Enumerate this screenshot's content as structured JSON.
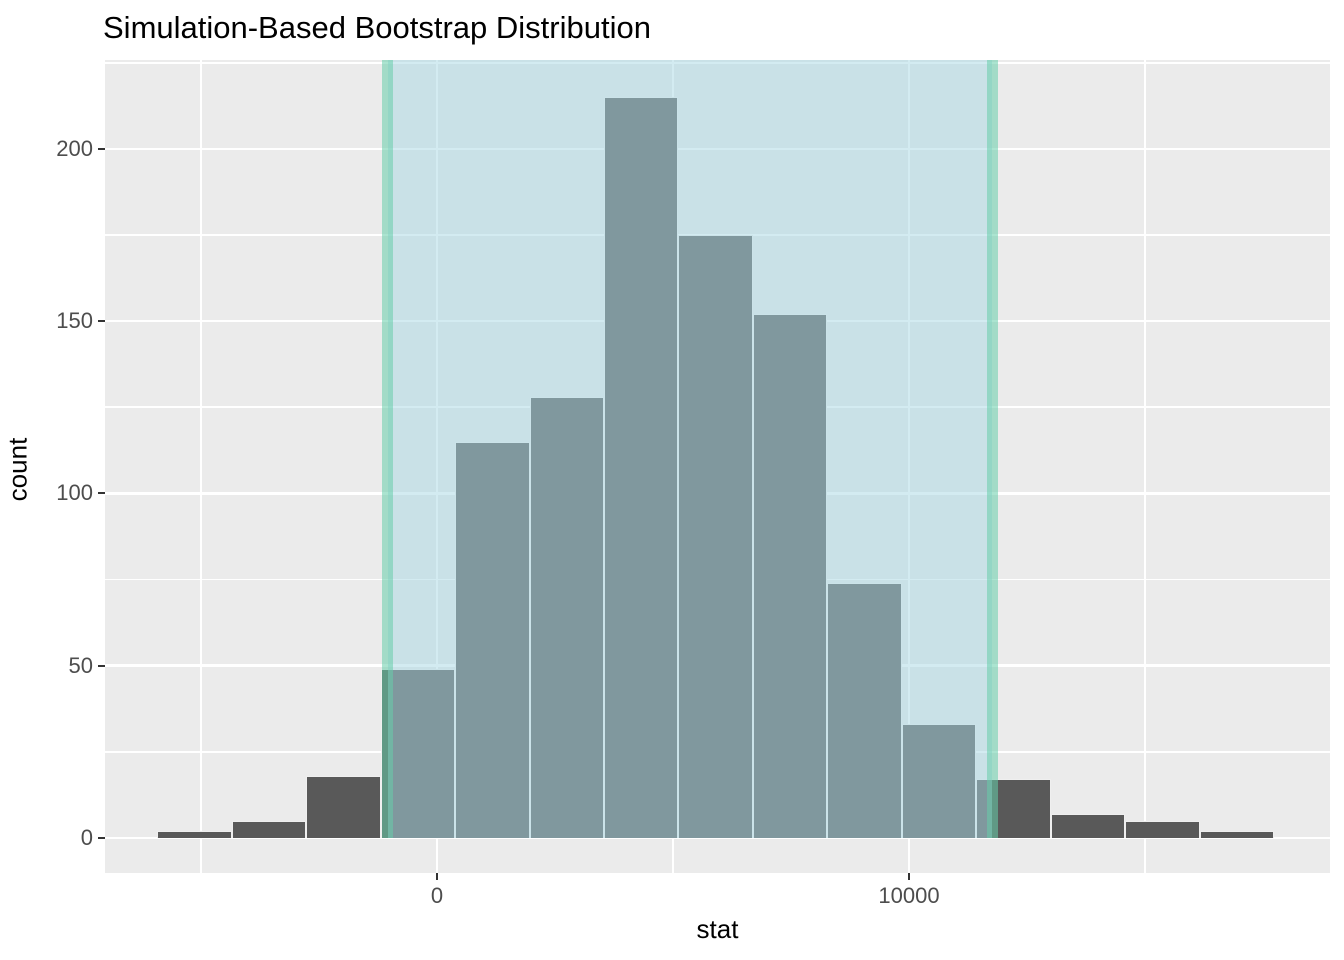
{
  "chart_data": {
    "type": "bar",
    "subtype": "histogram",
    "title": "Simulation-Based Bootstrap Distribution",
    "xlabel": "stat",
    "ylabel": "count",
    "xlim": [
      -7034,
      18919
    ],
    "ylim": [
      -10.2,
      225.8
    ],
    "grid": true,
    "legend_position": "none",
    "x_ticks": [
      {
        "value": 0,
        "label": "0"
      },
      {
        "value": 10000,
        "label": "10000"
      }
    ],
    "y_ticks": [
      {
        "value": 0,
        "label": "0"
      },
      {
        "value": 50,
        "label": "50"
      },
      {
        "value": 100,
        "label": "100"
      },
      {
        "value": 150,
        "label": "150"
      },
      {
        "value": 200,
        "label": "200"
      }
    ],
    "x_minor_gridlines": [
      -5000,
      5000,
      15000
    ],
    "y_minor_gridlines": [
      25,
      75,
      125,
      175,
      225
    ],
    "histogram": {
      "bin_start": -5930,
      "bin_width": 1578,
      "counts": [
        2,
        5,
        18,
        49,
        115,
        128,
        215,
        175,
        152,
        74,
        33,
        17,
        7,
        5,
        2
      ]
    },
    "confidence_interval": {
      "lower": -1040,
      "upper": 11760
    },
    "colors": {
      "panel_background": "#EBEBEB",
      "gridline": "#FFFFFF",
      "bar_fill": "#595959",
      "bar_border": "rgba(255,255,255,0.9)",
      "ci_shade_fill": "rgba(168,216,228,0.5)",
      "ci_line": "rgba(102,205,170,0.55)",
      "tick_mark": "#333333",
      "tick_text": "#4D4D4D",
      "title_text": "#000000"
    }
  }
}
